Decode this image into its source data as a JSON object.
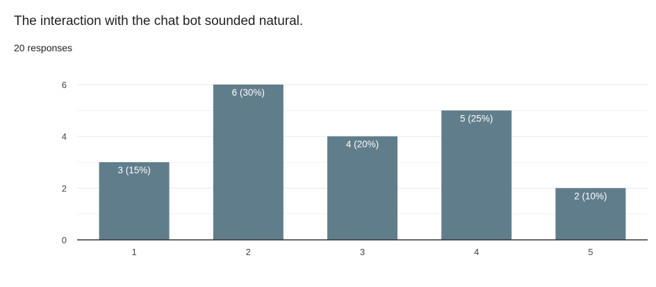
{
  "question": {
    "title": "The interaction with the chat bot sounded natural.",
    "response_count": "20 responses"
  },
  "colors": {
    "bar": "#607d8b",
    "grid": "#e8e8e8",
    "axis": "#333333",
    "bar_label": "#ffffff"
  },
  "chart_data": {
    "type": "bar",
    "categories": [
      "1",
      "2",
      "3",
      "4",
      "5"
    ],
    "values": [
      3,
      6,
      4,
      5,
      2
    ],
    "data_labels": [
      "3 (15%)",
      "6 (30%)",
      "4 (20%)",
      "5 (25%)",
      "2 (10%)"
    ],
    "y_ticks": [
      0,
      2,
      4,
      6
    ],
    "ylim": [
      0,
      6
    ],
    "minor_gridlines": true,
    "legend": "none",
    "title": "",
    "xlabel": "",
    "ylabel": ""
  }
}
